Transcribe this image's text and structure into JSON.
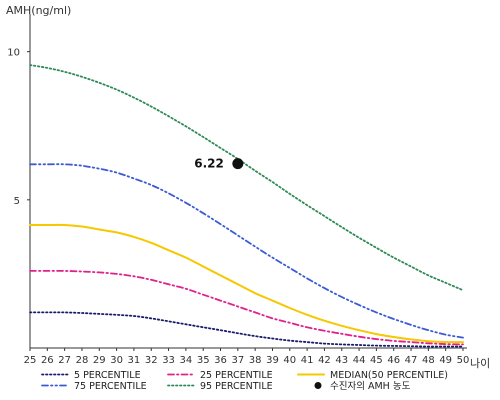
{
  "chart_data": {
    "type": "line",
    "ylabel": "AMH(ng/ml)",
    "xlabel": "나이",
    "ylim": [
      0,
      11
    ],
    "xlim": [
      25,
      50
    ],
    "x_ticks": [
      "25",
      "26",
      "27",
      "28",
      "29",
      "30",
      "31",
      "32",
      "33",
      "34",
      "35",
      "36",
      "37",
      "38",
      "39",
      "40",
      "41",
      "42",
      "43",
      "44",
      "45",
      "46",
      "47",
      "48",
      "49",
      "50"
    ],
    "y_ticks": [
      "5",
      "10"
    ],
    "x": [
      25,
      26,
      27,
      28,
      29,
      30,
      31,
      32,
      33,
      34,
      35,
      36,
      37,
      38,
      39,
      40,
      41,
      42,
      43,
      44,
      45,
      46,
      47,
      48,
      49,
      50
    ],
    "series": [
      {
        "name": "5 PERCENTILE",
        "color": "#1a1a6e",
        "style": "dotted",
        "values": [
          1.2,
          1.2,
          1.2,
          1.18,
          1.15,
          1.12,
          1.08,
          1.0,
          0.9,
          0.8,
          0.7,
          0.6,
          0.5,
          0.4,
          0.32,
          0.25,
          0.2,
          0.15,
          0.12,
          0.1,
          0.08,
          0.07,
          0.06,
          0.05,
          0.05,
          0.05
        ]
      },
      {
        "name": "25 PERCENTILE",
        "color": "#e0208c",
        "style": "dashdot",
        "values": [
          2.6,
          2.6,
          2.6,
          2.58,
          2.55,
          2.5,
          2.42,
          2.3,
          2.15,
          2.0,
          1.8,
          1.6,
          1.4,
          1.2,
          1.0,
          0.85,
          0.7,
          0.58,
          0.48,
          0.38,
          0.3,
          0.24,
          0.2,
          0.16,
          0.13,
          0.12
        ]
      },
      {
        "name": "MEDIAN(50 PERCENTILE)",
        "color": "#f5c800",
        "style": "solid",
        "values": [
          4.15,
          4.15,
          4.15,
          4.1,
          4.0,
          3.9,
          3.75,
          3.55,
          3.3,
          3.05,
          2.75,
          2.45,
          2.15,
          1.85,
          1.6,
          1.35,
          1.12,
          0.92,
          0.75,
          0.6,
          0.47,
          0.37,
          0.29,
          0.23,
          0.2,
          0.2
        ]
      },
      {
        "name": "75 PERCENTILE",
        "color": "#3b5bd5",
        "style": "dashdotdot",
        "values": [
          6.2,
          6.2,
          6.2,
          6.15,
          6.05,
          5.92,
          5.72,
          5.5,
          5.22,
          4.9,
          4.55,
          4.18,
          3.8,
          3.42,
          3.05,
          2.7,
          2.35,
          2.02,
          1.72,
          1.45,
          1.2,
          0.98,
          0.78,
          0.6,
          0.45,
          0.35
        ]
      },
      {
        "name": "95 PERCENTILE",
        "color": "#2e8b57",
        "style": "dotted",
        "values": [
          9.55,
          9.45,
          9.32,
          9.15,
          8.95,
          8.72,
          8.45,
          8.15,
          7.82,
          7.48,
          7.12,
          6.75,
          6.38,
          5.98,
          5.6,
          5.2,
          4.82,
          4.45,
          4.08,
          3.72,
          3.38,
          3.05,
          2.75,
          2.45,
          2.2,
          1.95
        ]
      }
    ],
    "highlight": {
      "name": "수진자의 AMH 농도",
      "x": 37,
      "y": 6.22,
      "label": "6.22",
      "color": "#111111"
    },
    "legend": {
      "placement": "bottom",
      "entries": [
        {
          "label": "5 PERCENTILE",
          "color": "#1a1a6e",
          "style": "dotted"
        },
        {
          "label": "25 PERCENTILE",
          "color": "#e0208c",
          "style": "dashdot"
        },
        {
          "label": "MEDIAN(50 PERCENTILE)",
          "color": "#f5c800",
          "style": "solid"
        },
        {
          "label": "75 PERCENTILE",
          "color": "#3b5bd5",
          "style": "dashdotdot"
        },
        {
          "label": "95 PERCENTILE",
          "color": "#2e8b57",
          "style": "dotted"
        },
        {
          "label": "수진자의 AMH 농도",
          "color": "#111111",
          "style": "marker"
        }
      ]
    },
    "grid": false
  }
}
